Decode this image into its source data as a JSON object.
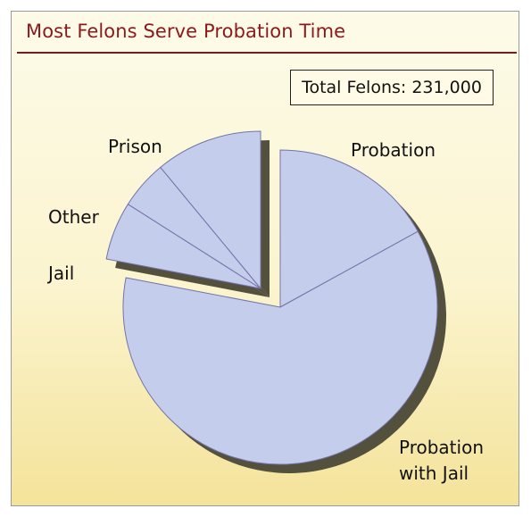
{
  "title": "Most Felons Serve Probation Time",
  "total_label": "Total Felons: 231,000",
  "colors": {
    "title": "#8a1a1c",
    "slice": "#c4cdec",
    "slice_divider": "#7473a8",
    "shadow": "#54503e"
  },
  "chart_data": {
    "type": "pie",
    "title": "Most Felons Serve Probation Time",
    "annotations": [
      "Total Felons: 231,000"
    ],
    "slices": [
      {
        "label": "Probation",
        "value": 17,
        "exploded": false
      },
      {
        "label": "Probation with Jail",
        "value": 61,
        "exploded": false
      },
      {
        "label": "Jail",
        "value": 6,
        "exploded": true
      },
      {
        "label": "Other",
        "value": 5,
        "exploded": true
      },
      {
        "label": "Prison",
        "value": 11,
        "exploded": true
      }
    ],
    "unit": "percent"
  }
}
